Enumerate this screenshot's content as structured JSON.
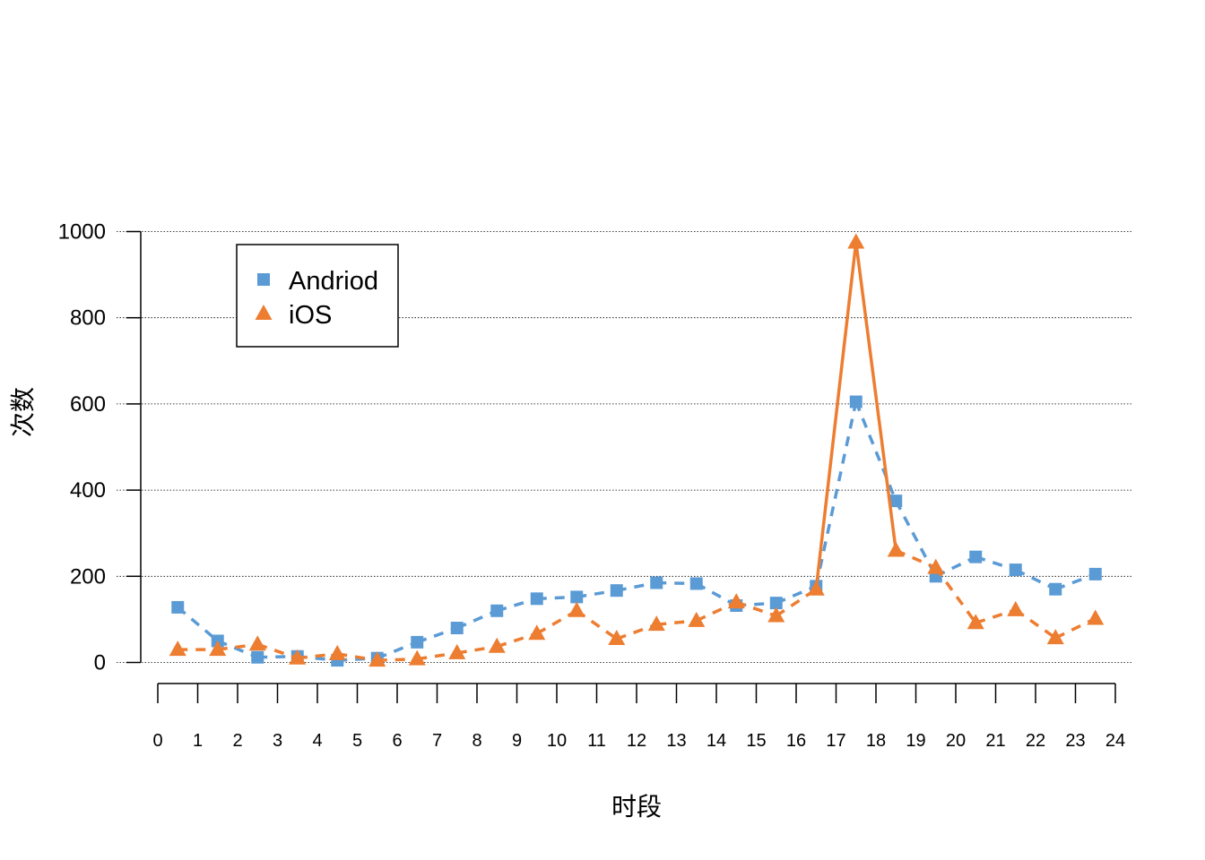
{
  "chart_data": {
    "type": "line",
    "title": "",
    "xlabel": "时段",
    "ylabel": "次数",
    "ylim": [
      0,
      1000
    ],
    "y_ticks": [
      "0",
      "200",
      "400",
      "600",
      "800",
      "1000"
    ],
    "x_ticks": [
      "0",
      "1",
      "2",
      "3",
      "4",
      "5",
      "6",
      "7",
      "8",
      "9",
      "10",
      "11",
      "12",
      "13",
      "14",
      "15",
      "16",
      "17",
      "18",
      "19",
      "20",
      "21",
      "22",
      "23",
      "24"
    ],
    "x": [
      0.5,
      1.5,
      2.5,
      3.5,
      4.5,
      5.5,
      6.5,
      7.5,
      8.5,
      9.5,
      10.5,
      11.5,
      12.5,
      13.5,
      14.5,
      15.5,
      16.5,
      17.5,
      18.5,
      19.5,
      20.5,
      21.5,
      22.5,
      23.5
    ],
    "grid": "horizontal dotted",
    "legend_position": "top-left",
    "series": [
      {
        "name": "Andriod",
        "marker": "square",
        "color": "#5B9BD5",
        "values": [
          128,
          50,
          12,
          14,
          5,
          10,
          47,
          80,
          120,
          148,
          152,
          167,
          185,
          183,
          132,
          138,
          177,
          605,
          375,
          200,
          245,
          215,
          170,
          205
        ]
      },
      {
        "name": "iOS",
        "marker": "triangle",
        "color": "#ED7D31",
        "values": [
          30,
          30,
          42,
          10,
          20,
          5,
          8,
          22,
          37,
          67,
          120,
          55,
          88,
          97,
          140,
          108,
          170,
          975,
          260,
          220,
          92,
          122,
          57,
          102
        ]
      }
    ]
  }
}
